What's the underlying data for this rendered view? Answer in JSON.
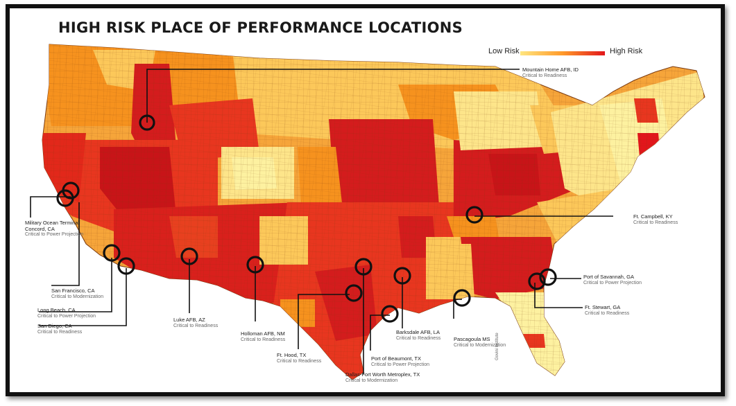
{
  "title": "HIGH RISK PLACE OF PERFORMANCE LOCATIONS",
  "legend": {
    "low_label": "Low Risk",
    "high_label": "High Risk",
    "colors": [
      "#ffe680",
      "#ff9a2a",
      "#e2161b"
    ]
  },
  "palette": {
    "pale": "#fdf1a0",
    "light": "#fcc85a",
    "orange": "#f6921e",
    "red": "#e8361f",
    "dark": "#c81418",
    "border": "#7a3a10"
  },
  "credit": "Govini Institute",
  "locations": [
    {
      "id": "mountain-home",
      "name": "Mountain Home AFB, ID",
      "role": "Critical to Readiness"
    },
    {
      "id": "concord",
      "name": "Military Ocean Terminal Concord, CA",
      "role": "Critical to Power Projection"
    },
    {
      "id": "san-francisco",
      "name": "San Francisco, CA",
      "role": "Critical to Modernization"
    },
    {
      "id": "long-beach",
      "name": "Long Beach, CA",
      "role": "Critical to Power Projection"
    },
    {
      "id": "san-diego",
      "name": "San Diego, CA",
      "role": "Critical to Readiness"
    },
    {
      "id": "luke",
      "name": "Luke AFB, AZ",
      "role": "Critical to Readiness"
    },
    {
      "id": "holloman",
      "name": "Holloman AFB, NM",
      "role": "Critical to Readiness"
    },
    {
      "id": "hood",
      "name": "Ft. Hood, TX",
      "role": "Critical to Readiness"
    },
    {
      "id": "dallas",
      "name": "Dallas-Fort Worth Metroplex, TX",
      "role": "Critical to Modernization"
    },
    {
      "id": "beaumont",
      "name": "Port of Beaumont, TX",
      "role": "Critical to Power Projection"
    },
    {
      "id": "barksdale",
      "name": "Barksdale AFB, LA",
      "role": "Critical to Readiness"
    },
    {
      "id": "pascagoula",
      "name": "Pascagoula MS",
      "role": "Critical to Modernization"
    },
    {
      "id": "campbell",
      "name": "Ft. Campbell, KY",
      "role": "Critical to Readiness"
    },
    {
      "id": "savannah",
      "name": "Port of Savannah, GA",
      "role": "Critical to Power Projection"
    },
    {
      "id": "stewart",
      "name": "Ft. Stewart, GA",
      "role": "Critical to Readiness"
    }
  ]
}
